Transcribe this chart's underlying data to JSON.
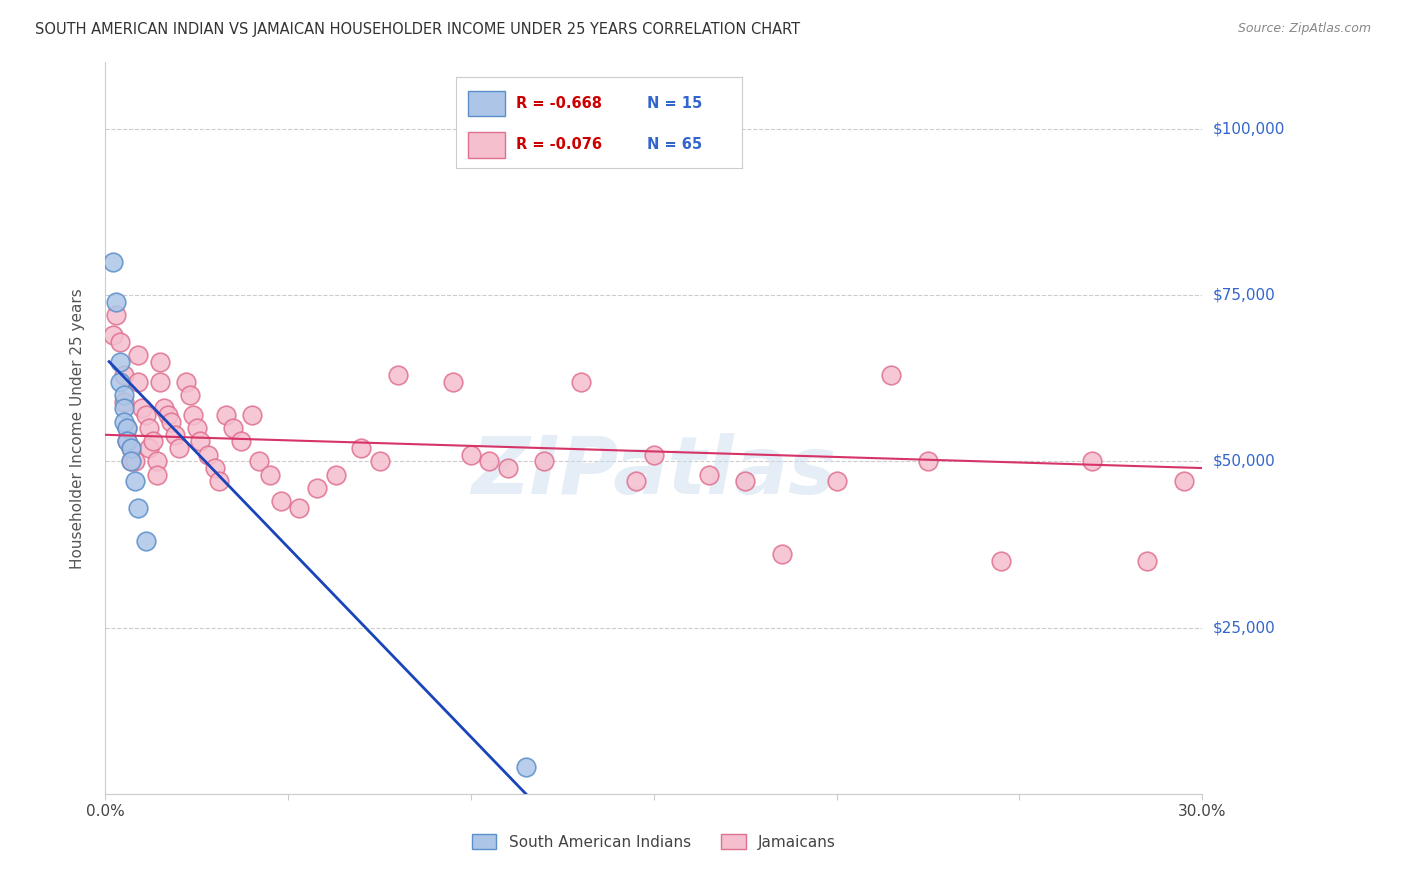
{
  "title": "SOUTH AMERICAN INDIAN VS JAMAICAN HOUSEHOLDER INCOME UNDER 25 YEARS CORRELATION CHART",
  "source": "Source: ZipAtlas.com",
  "ylabel": "Householder Income Under 25 years",
  "xlim": [
    0.0,
    0.3
  ],
  "ylim": [
    0,
    110000
  ],
  "yticks": [
    0,
    25000,
    50000,
    75000,
    100000
  ],
  "ytick_labels": [
    "",
    "$25,000",
    "$50,000",
    "$75,000",
    "$100,000"
  ],
  "xticks": [
    0.0,
    0.05,
    0.1,
    0.15,
    0.2,
    0.25,
    0.3
  ],
  "xtick_labels": [
    "0.0%",
    "",
    "",
    "",
    "",
    "",
    "30.0%"
  ],
  "blue_color": "#adc6e8",
  "blue_edge": "#5b8fc9",
  "pink_color": "#f5bfce",
  "pink_edge": "#e07090",
  "line_blue": "#1a44bb",
  "line_pink": "#d63366",
  "legend_R1": "R = -0.668",
  "legend_N1": "N = 15",
  "legend_R2": "R = -0.076",
  "legend_N2": "N = 65",
  "legend_label1": "South American Indians",
  "legend_label2": "Jamaicans",
  "watermark": "ZIPatlas",
  "blue_x": [
    0.002,
    0.003,
    0.004,
    0.004,
    0.005,
    0.005,
    0.005,
    0.006,
    0.006,
    0.007,
    0.007,
    0.008,
    0.009,
    0.011,
    0.115
  ],
  "blue_y": [
    80000,
    74000,
    65000,
    62000,
    60000,
    58000,
    56000,
    55000,
    53000,
    52000,
    50000,
    47000,
    43000,
    38000,
    4000
  ],
  "pink_x": [
    0.002,
    0.003,
    0.004,
    0.005,
    0.005,
    0.006,
    0.006,
    0.007,
    0.007,
    0.008,
    0.009,
    0.009,
    0.01,
    0.011,
    0.012,
    0.012,
    0.013,
    0.014,
    0.014,
    0.015,
    0.015,
    0.016,
    0.017,
    0.018,
    0.019,
    0.02,
    0.022,
    0.023,
    0.024,
    0.025,
    0.026,
    0.028,
    0.03,
    0.031,
    0.033,
    0.035,
    0.037,
    0.04,
    0.042,
    0.045,
    0.048,
    0.053,
    0.058,
    0.063,
    0.07,
    0.075,
    0.08,
    0.095,
    0.1,
    0.105,
    0.11,
    0.12,
    0.13,
    0.145,
    0.15,
    0.165,
    0.175,
    0.185,
    0.2,
    0.215,
    0.225,
    0.245,
    0.27,
    0.285,
    0.295
  ],
  "pink_y": [
    69000,
    72000,
    68000,
    63000,
    59000,
    55000,
    53000,
    52000,
    50000,
    50000,
    66000,
    62000,
    58000,
    57000,
    55000,
    52000,
    53000,
    50000,
    48000,
    65000,
    62000,
    58000,
    57000,
    56000,
    54000,
    52000,
    62000,
    60000,
    57000,
    55000,
    53000,
    51000,
    49000,
    47000,
    57000,
    55000,
    53000,
    57000,
    50000,
    48000,
    44000,
    43000,
    46000,
    48000,
    52000,
    50000,
    63000,
    62000,
    51000,
    50000,
    49000,
    50000,
    62000,
    47000,
    51000,
    48000,
    47000,
    36000,
    47000,
    63000,
    50000,
    35000,
    50000,
    35000,
    47000
  ],
  "blue_line_x": [
    0.001,
    0.115
  ],
  "blue_line_y": [
    65000,
    0
  ],
  "pink_line_x": [
    0.0,
    0.3
  ],
  "pink_line_y": [
    54000,
    49000
  ]
}
